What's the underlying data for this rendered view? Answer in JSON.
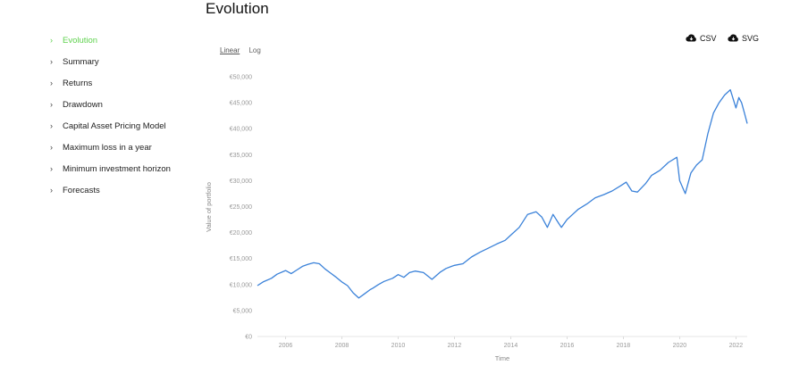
{
  "page": {
    "title": "Evolution"
  },
  "sidebar": {
    "items": [
      {
        "label": "Evolution",
        "active": true
      },
      {
        "label": "Summary"
      },
      {
        "label": "Returns"
      },
      {
        "label": "Drawdown"
      },
      {
        "label": "Capital Asset Pricing Model"
      },
      {
        "label": "Maximum loss in a year"
      },
      {
        "label": "Minimum investment horizon"
      },
      {
        "label": "Forecasts"
      }
    ]
  },
  "toolbar": {
    "linear_label": "Linear",
    "log_label": "Log",
    "active_scale": "linear"
  },
  "exports": {
    "csv_label": "CSV",
    "svg_label": "SVG"
  },
  "colors": {
    "accent": "#5fd24e",
    "line": "#3b82d9"
  },
  "chart_data": {
    "type": "line",
    "xlabel": "Time",
    "ylabel": "Value of portfolio",
    "xlim": [
      2005,
      2022.4
    ],
    "ylim": [
      0,
      50000
    ],
    "x_ticks": [
      2006,
      2008,
      2010,
      2012,
      2014,
      2016,
      2018,
      2020,
      2022
    ],
    "y_ticks": [
      "€0",
      "€5,000",
      "€10,000",
      "€15,000",
      "€20,000",
      "€25,000",
      "€30,000",
      "€35,000",
      "€40,000",
      "€45,000",
      "€50,000"
    ],
    "grid": false,
    "series": [
      {
        "x": [
          2005.0,
          2005.2,
          2005.5,
          2005.7,
          2006.0,
          2006.2,
          2006.4,
          2006.6,
          2006.8,
          2007.0,
          2007.2,
          2007.4,
          2007.6,
          2007.8,
          2008.0,
          2008.2,
          2008.4,
          2008.6,
          2008.8,
          2009.0,
          2009.1,
          2009.3,
          2009.5,
          2009.8,
          2010.0,
          2010.2,
          2010.4,
          2010.6,
          2010.9,
          2011.2,
          2011.5,
          2011.7,
          2011.9,
          2012.0,
          2012.3,
          2012.6,
          2012.9,
          2013.2,
          2013.5,
          2013.8,
          2014.0,
          2014.3,
          2014.6,
          2014.9,
          2015.1,
          2015.3,
          2015.5,
          2015.7,
          2015.8,
          2016.0,
          2016.2,
          2016.4,
          2016.7,
          2017.0,
          2017.3,
          2017.6,
          2017.9,
          2018.1,
          2018.3,
          2018.5,
          2018.8,
          2019.0,
          2019.3,
          2019.6,
          2019.9,
          2020.0,
          2020.2,
          2020.4,
          2020.6,
          2020.8,
          2021.0,
          2021.2,
          2021.4,
          2021.6,
          2021.8,
          2022.0,
          2022.1,
          2022.2,
          2022.3,
          2022.4
        ],
        "values": [
          9800,
          10500,
          11200,
          12000,
          12700,
          12100,
          12800,
          13500,
          13900,
          14200,
          14000,
          13000,
          12200,
          11400,
          10500,
          9800,
          8400,
          7400,
          8200,
          9000,
          9300,
          10000,
          10600,
          11200,
          11900,
          11400,
          12300,
          12600,
          12300,
          11000,
          12400,
          13100,
          13500,
          13700,
          14000,
          15300,
          16200,
          17000,
          17800,
          18500,
          19500,
          21000,
          23500,
          24000,
          23000,
          21000,
          23500,
          21800,
          21000,
          22500,
          23500,
          24500,
          25500,
          26700,
          27300,
          28000,
          29000,
          29700,
          28000,
          27800,
          29500,
          31000,
          32000,
          33500,
          34500,
          30000,
          27500,
          31500,
          33000,
          34000,
          39000,
          43000,
          45000,
          46500,
          47500,
          44000,
          46000,
          45000,
          43000,
          41000
        ]
      }
    ]
  }
}
